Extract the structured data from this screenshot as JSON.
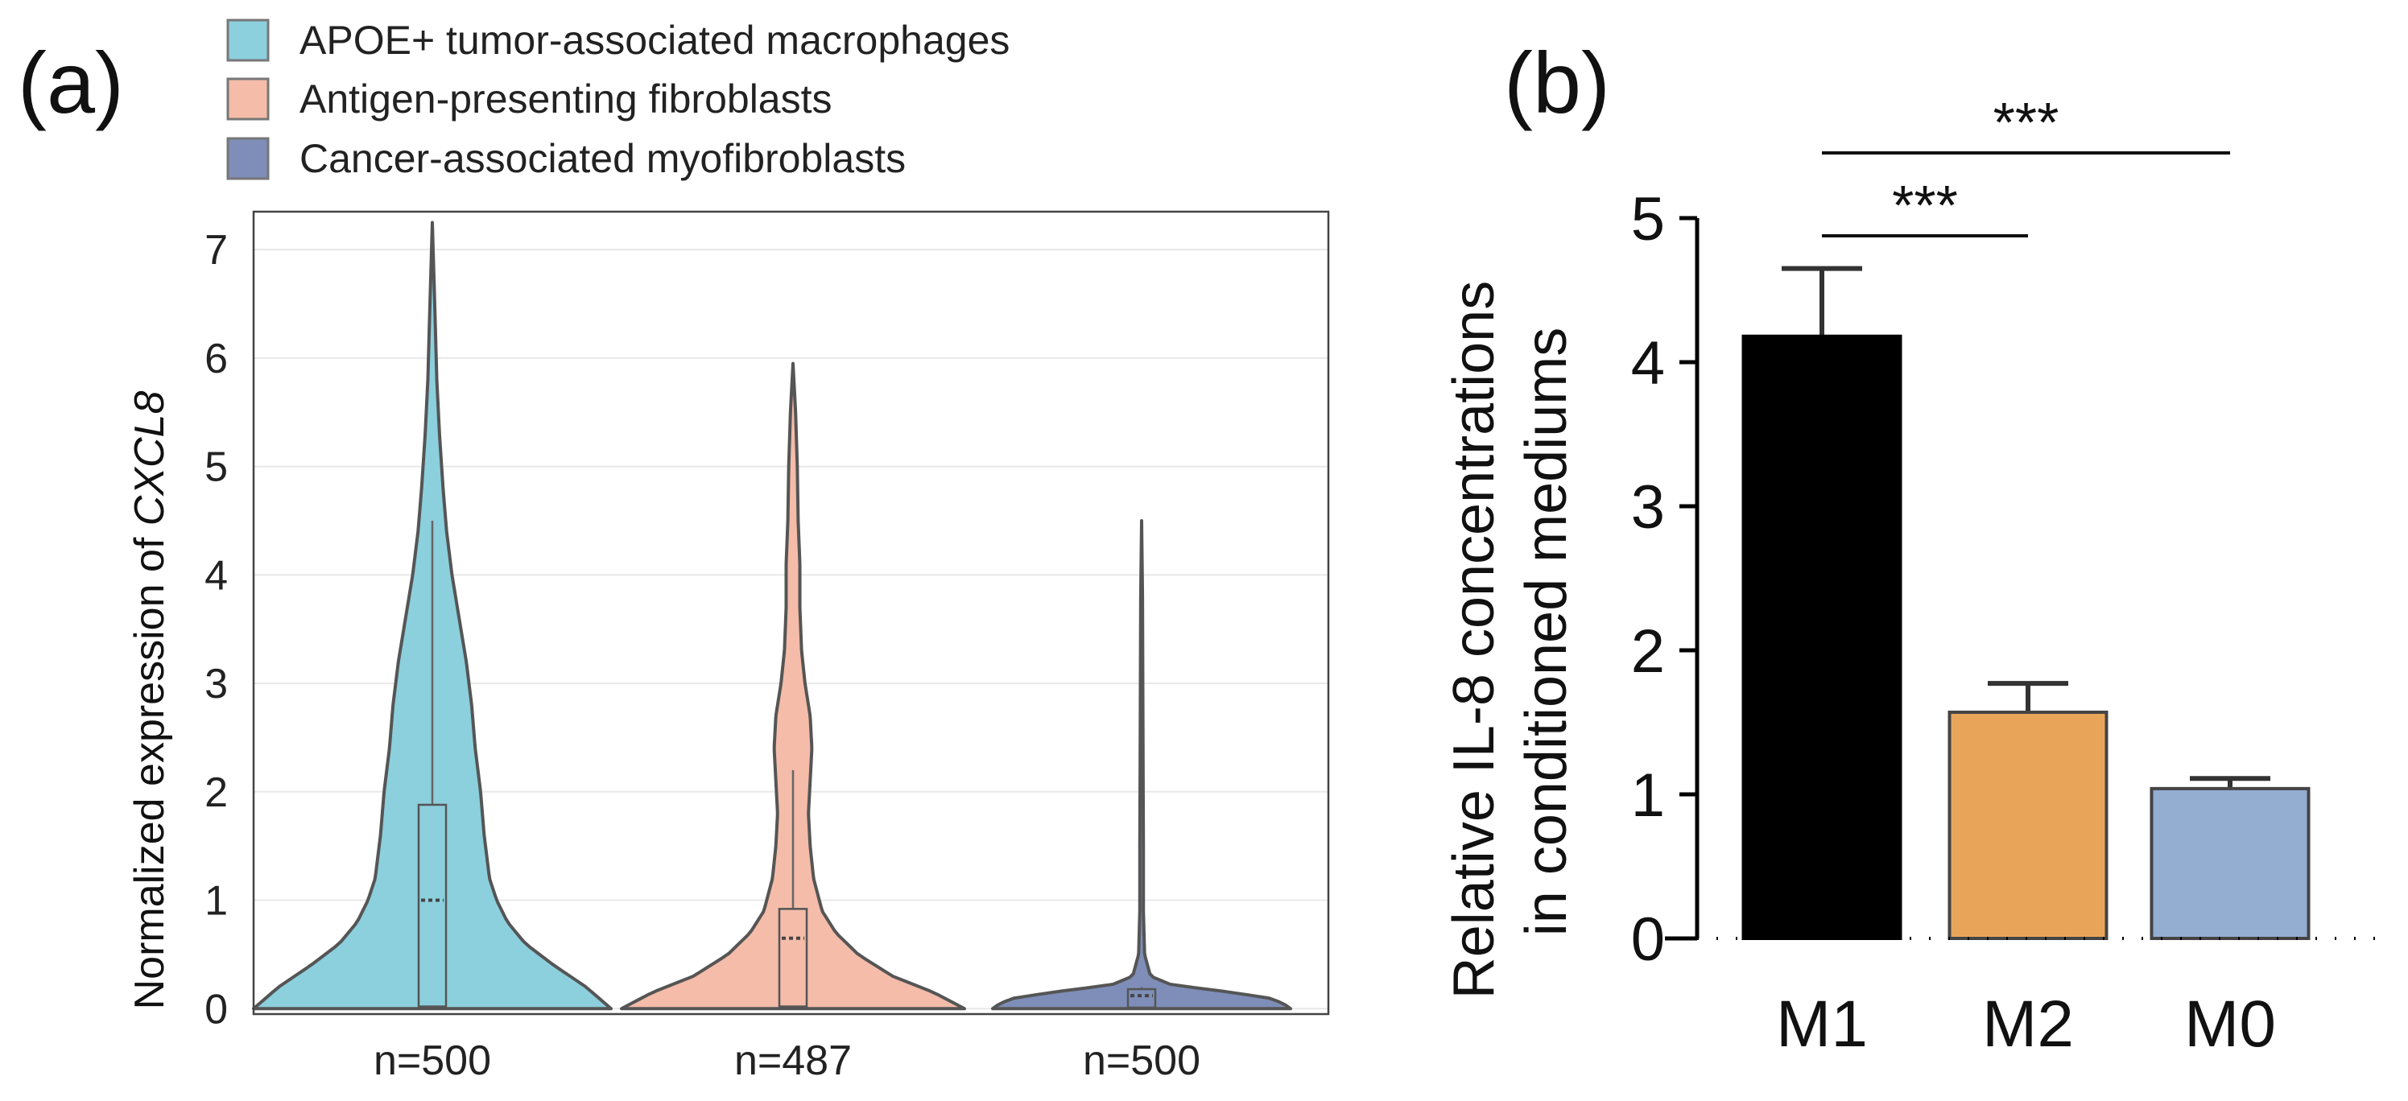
{
  "panel_a": {
    "label": "(a)",
    "legend": [
      {
        "label": "APOE+ tumor-associated macrophages",
        "color": "#8ccfdd"
      },
      {
        "label": "Antigen-presenting fibroblasts",
        "color": "#f4bca9"
      },
      {
        "label": "Cancer-associated myofibroblasts",
        "color": "#7e8eb8"
      }
    ],
    "ylabel_prefix": "Normalized expression of ",
    "ylabel_gene": "CXCL8"
  },
  "panel_b": {
    "label": "(b)",
    "ylabel_line1": "Relative IL-8 concentrations",
    "ylabel_line2": "in conditioned mediums",
    "significance": [
      {
        "from": "M1",
        "to": "M0",
        "label": "***"
      },
      {
        "from": "M1",
        "to": "M2",
        "label": "***"
      }
    ]
  },
  "colors": {
    "axis": "#000000",
    "grid": "#e8e8e8",
    "violin_outline": "#555555"
  },
  "chart_data": [
    {
      "type": "violin",
      "title": "",
      "xlabel": "",
      "ylabel": "Normalized expression of CXCL8",
      "ylim": [
        -0.05,
        7.35
      ],
      "yticks": [
        0,
        1,
        2,
        3,
        4,
        5,
        6,
        7
      ],
      "grid": true,
      "legend_position": "top-left",
      "categories": [
        "n=500",
        "n=487",
        "n=500"
      ],
      "series": [
        {
          "name": "APOE+ tumor-associated macrophages",
          "n": 500,
          "color": "#8ccfdd",
          "max": 7.25,
          "whisker_high": 4.5,
          "q1": 0.02,
          "median": 1.0,
          "q3": 1.88,
          "density": [
            [
              0,
              1.0
            ],
            [
              0.2,
              0.86
            ],
            [
              0.4,
              0.68
            ],
            [
              0.6,
              0.52
            ],
            [
              0.8,
              0.42
            ],
            [
              1.0,
              0.36
            ],
            [
              1.2,
              0.32
            ],
            [
              1.6,
              0.29
            ],
            [
              2.0,
              0.27
            ],
            [
              2.4,
              0.24
            ],
            [
              2.8,
              0.22
            ],
            [
              3.2,
              0.19
            ],
            [
              3.6,
              0.15
            ],
            [
              4.0,
              0.11
            ],
            [
              4.4,
              0.08
            ],
            [
              4.8,
              0.06
            ],
            [
              5.3,
              0.04
            ],
            [
              5.8,
              0.025
            ],
            [
              6.4,
              0.015
            ],
            [
              7.25,
              0.0
            ]
          ]
        },
        {
          "name": "Antigen-presenting fibroblasts",
          "n": 487,
          "color": "#f4bca9",
          "max": 5.95,
          "whisker_high": 2.2,
          "q1": 0.02,
          "median": 0.65,
          "q3": 0.92,
          "density": [
            [
              0,
              1.0
            ],
            [
              0.15,
              0.82
            ],
            [
              0.3,
              0.58
            ],
            [
              0.5,
              0.38
            ],
            [
              0.7,
              0.25
            ],
            [
              0.9,
              0.17
            ],
            [
              1.2,
              0.12
            ],
            [
              1.5,
              0.1
            ],
            [
              1.8,
              0.09
            ],
            [
              2.1,
              0.1
            ],
            [
              2.4,
              0.11
            ],
            [
              2.7,
              0.1
            ],
            [
              3.0,
              0.07
            ],
            [
              3.3,
              0.05
            ],
            [
              3.7,
              0.04
            ],
            [
              4.1,
              0.04
            ],
            [
              4.5,
              0.03
            ],
            [
              5.0,
              0.025
            ],
            [
              5.5,
              0.015
            ],
            [
              5.95,
              0.0
            ]
          ]
        },
        {
          "name": "Cancer-associated myofibroblasts",
          "n": 500,
          "color": "#7e8eb8",
          "max": 4.5,
          "whisker_high": 0.2,
          "q1": 0.01,
          "median": 0.12,
          "q3": 0.18,
          "density": [
            [
              0,
              1.0
            ],
            [
              0.05,
              0.95
            ],
            [
              0.1,
              0.85
            ],
            [
              0.16,
              0.55
            ],
            [
              0.22,
              0.2
            ],
            [
              0.3,
              0.06
            ],
            [
              0.5,
              0.02
            ],
            [
              0.9,
              0.012
            ],
            [
              1.5,
              0.012
            ],
            [
              2.2,
              0.01
            ],
            [
              3.0,
              0.008
            ],
            [
              3.8,
              0.006
            ],
            [
              4.5,
              0.0
            ]
          ]
        }
      ]
    },
    {
      "type": "bar",
      "title": "",
      "xlabel": "",
      "ylabel": "Relative IL-8 concentrations in conditioned mediums",
      "ylim": [
        0,
        5
      ],
      "yticks": [
        0,
        1,
        2,
        3,
        4,
        5
      ],
      "categories": [
        "M1",
        "M2",
        "M0"
      ],
      "values": [
        4.18,
        1.57,
        1.04
      ],
      "errors": [
        0.47,
        0.2,
        0.07
      ],
      "colors": [
        "#000000",
        "#e8a55a",
        "#94aed2"
      ]
    }
  ]
}
